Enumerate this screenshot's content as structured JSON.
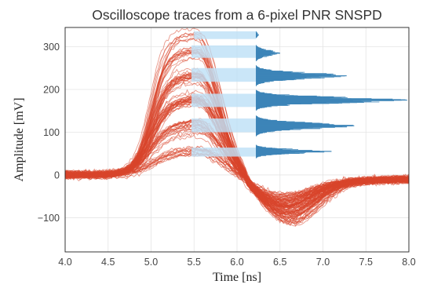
{
  "chart_data": {
    "type": "line",
    "title": "Oscilloscope traces from a 6-pixel PNR SNSPD",
    "xlabel": "Time [ns]",
    "ylabel": "Amplitude [mV]",
    "xlim": [
      4.0,
      8.0
    ],
    "ylim": [
      -180,
      345
    ],
    "xticks": [
      "4.0",
      "4.5",
      "5.0",
      "5.5",
      "6.0",
      "6.5",
      "7.0",
      "7.5",
      "8.0"
    ],
    "yticks": [
      "300",
      "200",
      "100",
      "0",
      "−100"
    ],
    "grid": true,
    "trace_color": "#d9452c",
    "histogram_color": "#3d85b8",
    "band_color": "#bee0f7",
    "photon_levels": [
      {
        "n": 1,
        "peak_mV": 55,
        "band_mV": [
          43,
          64
        ],
        "hist_rel": 0.5
      },
      {
        "n": 2,
        "peak_mV": 115,
        "band_mV": [
          100,
          132
        ],
        "hist_rel": 0.65
      },
      {
        "n": 3,
        "peak_mV": 175,
        "band_mV": [
          159,
          190
        ],
        "hist_rel": 1.0
      },
      {
        "n": 4,
        "peak_mV": 232,
        "band_mV": [
          218,
          250
        ],
        "hist_rel": 0.6
      },
      {
        "n": 5,
        "peak_mV": 285,
        "band_mV": [
          274,
          303
        ],
        "hist_rel": 0.16
      },
      {
        "n": 6,
        "peak_mV": 328,
        "band_mV": [
          318,
          336
        ],
        "hist_rel": 0.02
      }
    ]
  }
}
